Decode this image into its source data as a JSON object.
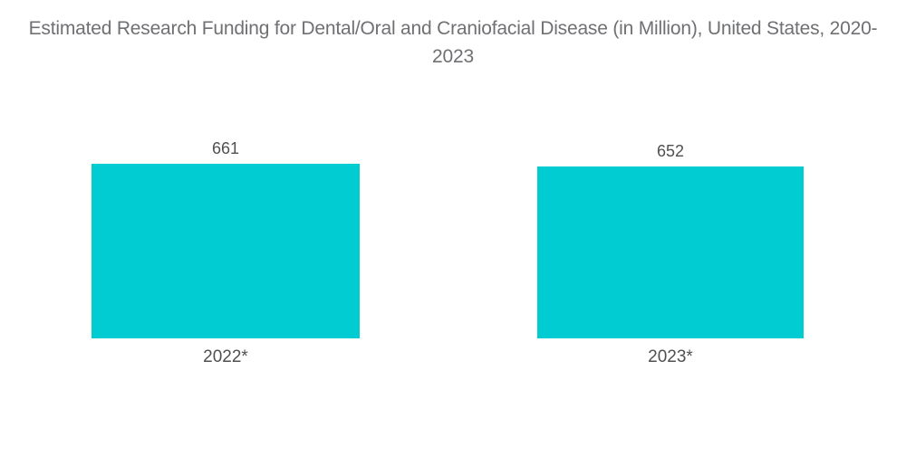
{
  "chart_data": {
    "type": "bar",
    "title": "Estimated Research Funding for Dental/Oral and Craniofacial Disease (in Million), United States, 2020-2023",
    "categories": [
      "2022*",
      "2023*"
    ],
    "values": [
      661,
      652
    ],
    "value_labels": [
      "661",
      "652"
    ],
    "xlabel": "",
    "ylabel": "",
    "ylim": [
      0,
      700
    ],
    "grid": false,
    "legend": false,
    "axes_visible": false
  },
  "colors": {
    "bar": "#00CCD2",
    "title_text": "#6F7073",
    "label_text": "#4F5052",
    "background": "#FFFFFF"
  }
}
